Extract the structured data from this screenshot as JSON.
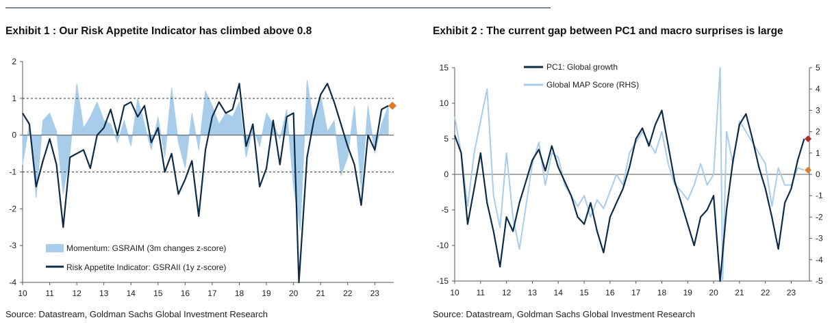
{
  "chart_data": [
    {
      "type": "area-line",
      "title": "Exhibit 1 : Our Risk Appetite Indicator has climbed above 0.8",
      "source": "Source: Datastream, Goldman Sachs Global Investment Research",
      "x_ticks": [
        "10",
        "11",
        "12",
        "13",
        "14",
        "15",
        "16",
        "17",
        "18",
        "19",
        "20",
        "21",
        "22",
        "23"
      ],
      "y_ticks": [
        "2",
        "1",
        "0",
        "-1",
        "-2",
        "-3",
        "-4"
      ],
      "ylim": [
        -4,
        2
      ],
      "xlim": [
        2010,
        2023.7
      ],
      "reference_lines": [
        1,
        0,
        -1
      ],
      "series": [
        {
          "name": "Momentum: GSRAIM (3m changes z-score)",
          "style": "area",
          "color": "#a8cdea",
          "x": [
            2010.0,
            2010.25,
            2010.5,
            2010.75,
            2011.0,
            2011.25,
            2011.5,
            2011.75,
            2012.0,
            2012.25,
            2012.5,
            2012.75,
            2013.0,
            2013.25,
            2013.5,
            2013.75,
            2014.0,
            2014.25,
            2014.5,
            2014.75,
            2015.0,
            2015.25,
            2015.5,
            2015.75,
            2016.0,
            2016.25,
            2016.5,
            2016.75,
            2017.0,
            2017.25,
            2017.5,
            2017.75,
            2018.0,
            2018.25,
            2018.5,
            2018.75,
            2019.0,
            2019.25,
            2019.5,
            2019.75,
            2020.0,
            2020.25,
            2020.5,
            2020.75,
            2021.0,
            2021.25,
            2021.5,
            2021.75,
            2022.0,
            2022.25,
            2022.5,
            2022.75,
            2023.0,
            2023.25,
            2023.5
          ],
          "values": [
            -0.8,
            0.3,
            -1.7,
            0.4,
            0.6,
            0.1,
            -1.6,
            -0.5,
            1.4,
            0.2,
            0.5,
            0.9,
            0.4,
            0.3,
            -0.2,
            0.4,
            -0.3,
            1.0,
            0.3,
            -0.4,
            0.5,
            -0.6,
            1.3,
            -0.2,
            -0.9,
            0.6,
            -0.4,
            1.2,
            0.8,
            0.3,
            0.6,
            0.5,
            0.9,
            -0.6,
            0.2,
            -0.3,
            0.6,
            0.3,
            -0.1,
            0.7,
            -1.4,
            -2.6,
            1.5,
            0.3,
            1.1,
            0.1,
            0.4,
            -1.1,
            -0.6,
            0.8,
            -1.5,
            0.8,
            -0.5,
            0.3,
            0.8
          ]
        },
        {
          "name": "Risk Appetite Indicator: GSRAII (1y z-score)",
          "style": "line",
          "color": "#0d2b45",
          "x": [
            2010.0,
            2010.25,
            2010.5,
            2010.75,
            2011.0,
            2011.25,
            2011.5,
            2011.75,
            2012.0,
            2012.25,
            2012.5,
            2012.75,
            2013.0,
            2013.25,
            2013.5,
            2013.75,
            2014.0,
            2014.25,
            2014.5,
            2014.75,
            2015.0,
            2015.25,
            2015.5,
            2015.75,
            2016.0,
            2016.25,
            2016.5,
            2016.75,
            2017.0,
            2017.25,
            2017.5,
            2017.75,
            2018.0,
            2018.25,
            2018.5,
            2018.75,
            2019.0,
            2019.25,
            2019.5,
            2019.75,
            2020.0,
            2020.2,
            2020.5,
            2020.75,
            2021.0,
            2021.25,
            2021.5,
            2021.75,
            2022.0,
            2022.25,
            2022.5,
            2022.75,
            2023.0,
            2023.25,
            2023.5
          ],
          "values": [
            0.6,
            0.3,
            -1.4,
            -0.7,
            -0.1,
            -0.8,
            -2.5,
            -0.6,
            -0.5,
            -0.4,
            -0.9,
            0.0,
            0.2,
            0.7,
            0.0,
            0.8,
            0.9,
            0.5,
            0.8,
            -0.2,
            0.2,
            -1.0,
            -0.5,
            -1.6,
            -1.2,
            -0.7,
            -2.2,
            -0.4,
            0.5,
            0.9,
            0.6,
            0.7,
            1.4,
            -0.3,
            0.3,
            -1.4,
            -0.9,
            0.4,
            -0.8,
            0.5,
            0.6,
            -4.0,
            -0.6,
            0.4,
            1.1,
            1.4,
            0.9,
            0.3,
            -0.3,
            -0.8,
            -1.9,
            0.0,
            -0.4,
            0.7,
            0.8
          ]
        }
      ],
      "end_marker": {
        "x": 2023.65,
        "value": 0.8,
        "color": "#e07a2b"
      }
    },
    {
      "type": "line",
      "title": "Exhibit 2 : The current gap between PC1 and macro surprises is large",
      "source": "Source: Datastream, Goldman Sachs Global Investment Research",
      "x_ticks": [
        "10",
        "11",
        "12",
        "13",
        "14",
        "15",
        "16",
        "17",
        "18",
        "19",
        "20",
        "21",
        "22",
        "23"
      ],
      "y_ticks_left": [
        "15",
        "10",
        "5",
        "0",
        "-5",
        "-10",
        "-15"
      ],
      "y_ticks_right": [
        "5",
        "4",
        "3",
        "2",
        "1",
        "0",
        "-1",
        "-2",
        "-3",
        "-4",
        "-5"
      ],
      "ylim_left": [
        -15,
        15
      ],
      "ylim_right": [
        -5,
        5
      ],
      "xlim": [
        2010,
        2023.7
      ],
      "reference_lines": [
        0
      ],
      "series": [
        {
          "name": "PC1: Global growth",
          "axis": "left",
          "color": "#0d2b45",
          "x": [
            2010.0,
            2010.25,
            2010.5,
            2010.75,
            2011.0,
            2011.25,
            2011.5,
            2011.75,
            2012.0,
            2012.25,
            2012.5,
            2012.75,
            2013.0,
            2013.25,
            2013.5,
            2013.75,
            2014.0,
            2014.25,
            2014.5,
            2014.75,
            2015.0,
            2015.25,
            2015.5,
            2015.75,
            2016.0,
            2016.25,
            2016.5,
            2016.75,
            2017.0,
            2017.25,
            2017.5,
            2017.75,
            2018.0,
            2018.25,
            2018.5,
            2018.75,
            2019.0,
            2019.25,
            2019.5,
            2019.75,
            2020.0,
            2020.25,
            2020.5,
            2020.75,
            2021.0,
            2021.25,
            2021.5,
            2021.75,
            2022.0,
            2022.25,
            2022.5,
            2022.75,
            2023.0,
            2023.25,
            2023.5
          ],
          "values": [
            5.5,
            3.0,
            -7.0,
            -2.0,
            3.0,
            -4.0,
            -8.0,
            -13.0,
            -6.0,
            -8.0,
            -4.0,
            -1.0,
            2.0,
            3.5,
            0.5,
            4.0,
            1.0,
            -1.0,
            -3.0,
            -6.0,
            -7.0,
            -4.0,
            -8.0,
            -11.0,
            -6.0,
            -4.0,
            -2.0,
            1.0,
            5.0,
            6.5,
            4.0,
            7.0,
            9.0,
            4.0,
            -1.0,
            -4.0,
            -7.0,
            -10.0,
            -6.0,
            -5.0,
            -3.0,
            -15.0,
            -5.0,
            2.0,
            7.0,
            8.5,
            5.0,
            1.0,
            -2.0,
            -6.0,
            -10.5,
            -4.0,
            -2.0,
            2.0,
            5.0
          ]
        },
        {
          "name": "Global MAP Score (RHS)",
          "axis": "right",
          "color": "#a8cdea",
          "x": [
            2010.0,
            2010.25,
            2010.5,
            2010.75,
            2011.0,
            2011.25,
            2011.5,
            2011.75,
            2012.0,
            2012.25,
            2012.5,
            2012.75,
            2013.0,
            2013.25,
            2013.5,
            2013.75,
            2014.0,
            2014.25,
            2014.5,
            2014.75,
            2015.0,
            2015.25,
            2015.5,
            2015.75,
            2016.0,
            2016.25,
            2016.5,
            2016.75,
            2017.0,
            2017.25,
            2017.5,
            2017.75,
            2018.0,
            2018.25,
            2018.5,
            2018.75,
            2019.0,
            2019.25,
            2019.5,
            2019.75,
            2020.0,
            2020.25,
            2020.35,
            2020.5,
            2020.75,
            2021.0,
            2021.25,
            2021.5,
            2021.75,
            2022.0,
            2022.25,
            2022.5,
            2022.75,
            2023.0,
            2023.25,
            2023.5
          ],
          "values": [
            2.7,
            1.0,
            -1.5,
            1.0,
            2.5,
            4.0,
            -1.0,
            -2.5,
            1.0,
            -2.0,
            -3.5,
            -1.5,
            0.5,
            1.5,
            -0.5,
            1.0,
            0.8,
            -0.5,
            -1.0,
            -1.5,
            -1.0,
            -2.0,
            -1.2,
            -1.6,
            -0.8,
            0.0,
            -0.5,
            1.0,
            1.5,
            2.0,
            1.5,
            1.0,
            2.0,
            0.5,
            -0.5,
            -0.8,
            -1.2,
            -0.5,
            0.5,
            -0.5,
            0.0,
            5.0,
            -5.0,
            2.0,
            0.5,
            2.5,
            2.0,
            1.5,
            1.0,
            0.5,
            -1.5,
            0.3,
            -0.5,
            -0.5,
            0.3,
            0.2
          ]
        }
      ],
      "end_markers": [
        {
          "x": 2023.65,
          "value": 5.0,
          "axis": "left",
          "color": "#b02a2a"
        },
        {
          "x": 2023.65,
          "value": 0.2,
          "axis": "right",
          "color": "#e07a2b"
        }
      ]
    }
  ]
}
